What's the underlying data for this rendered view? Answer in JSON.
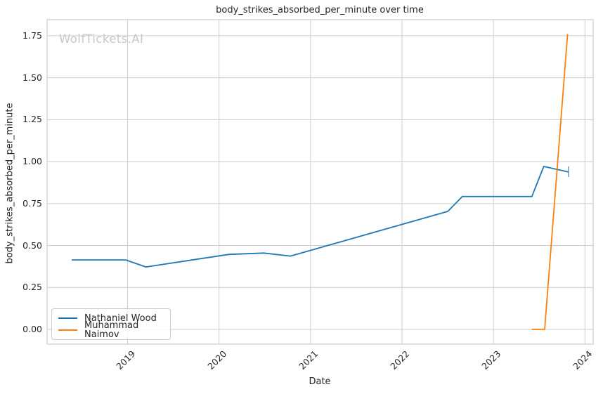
{
  "figure": {
    "watermark": "WolfTickets.AI"
  },
  "colors": {
    "grid": "#cccccc",
    "axes_edge": "#cccccc",
    "text": "#262626",
    "watermark": "#c8c8c8",
    "series_blue": "#1f77b4",
    "series_orange": "#ff7f0e"
  },
  "chart_data": {
    "type": "line",
    "title": "body_strikes_absorbed_per_minute over time",
    "xlabel": "Date",
    "ylabel": "body_strikes_absorbed_per_minute",
    "grid": true,
    "legend_position": "lower left",
    "x_tick_values": [
      2019,
      2020,
      2021,
      2022,
      2023,
      2024
    ],
    "x_tick_labels": [
      "2019",
      "2020",
      "2021",
      "2022",
      "2023",
      "2024"
    ],
    "y_tick_values": [
      0.0,
      0.25,
      0.5,
      0.75,
      1.0,
      1.25,
      1.5,
      1.75
    ],
    "y_tick_labels": [
      "0.00",
      "0.25",
      "0.50",
      "0.75",
      "1.00",
      "1.25",
      "1.50",
      "1.75"
    ],
    "xlim": [
      2018.12,
      2024.09
    ],
    "ylim": [
      -0.088,
      1.846
    ],
    "series": [
      {
        "name": "Nathaniel Wood",
        "color": "#1f77b4",
        "x": [
          2018.39,
          2018.98,
          2019.2,
          2020.11,
          2020.49,
          2020.78,
          2022.5,
          2022.66,
          2023.42,
          2023.55,
          2023.82
        ],
        "y": [
          0.414,
          0.414,
          0.372,
          0.447,
          0.455,
          0.437,
          0.703,
          0.792,
          0.792,
          0.971,
          0.938
        ],
        "end_cap": true
      },
      {
        "name": "Muhammad Naimov",
        "color": "#ff7f0e",
        "x": [
          2023.42,
          2023.56,
          2023.81
        ],
        "y": [
          0.0,
          0.0,
          1.76
        ],
        "end_cap": false
      }
    ]
  }
}
